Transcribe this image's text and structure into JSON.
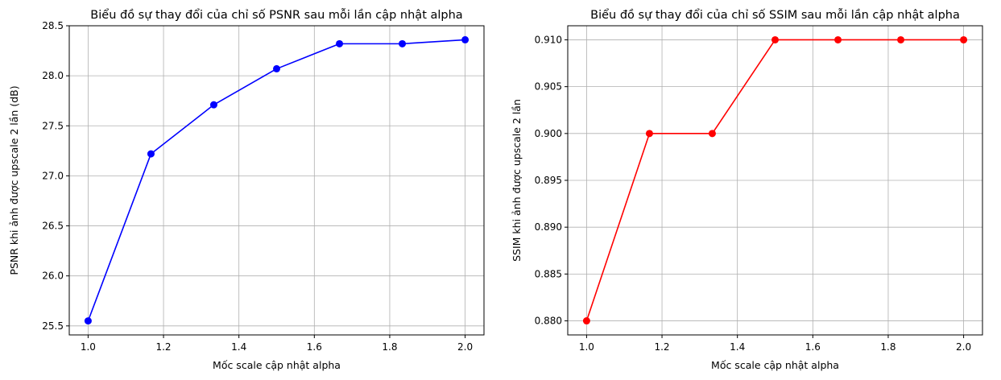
{
  "chart_data": [
    {
      "type": "line",
      "title": "Biểu đồ sự thay đổi của chỉ số PSNR sau mỗi lần cập nhật alpha",
      "xlabel": "Mốc scale cập nhật alpha",
      "ylabel": "PSNR khi ảnh được upscale 2 lần (dB)",
      "xlim": [
        0.95,
        2.05
      ],
      "ylim": [
        25.41,
        28.5
      ],
      "x_ticks": [
        1.0,
        1.2,
        1.4,
        1.6,
        1.8,
        2.0
      ],
      "x_tick_labels": [
        "1.0",
        "1.2",
        "1.4",
        "1.6",
        "1.8",
        "2.0"
      ],
      "y_ticks": [
        25.5,
        26.0,
        26.5,
        27.0,
        27.5,
        28.0,
        28.5
      ],
      "y_tick_labels": [
        "25.5",
        "26.0",
        "26.5",
        "27.0",
        "27.5",
        "28.0",
        "28.5"
      ],
      "grid": true,
      "color": "#0000ff",
      "marker": "circle",
      "series": [
        {
          "x": [
            1.0,
            1.1667,
            1.3333,
            1.5,
            1.6667,
            1.8333,
            2.0
          ],
          "y": [
            25.55,
            27.22,
            27.71,
            28.07,
            28.32,
            28.32,
            28.36
          ]
        }
      ]
    },
    {
      "type": "line",
      "title": "Biểu đồ sự thay đổi của chỉ số SSIM sau mỗi lần cập nhật alpha",
      "xlabel": "Mốc scale cập nhật alpha",
      "ylabel": "SSIM khi ảnh được upscale 2 lần",
      "xlim": [
        0.95,
        2.05
      ],
      "ylim": [
        0.8785,
        0.9115
      ],
      "x_ticks": [
        1.0,
        1.2,
        1.4,
        1.6,
        1.8,
        2.0
      ],
      "x_tick_labels": [
        "1.0",
        "1.2",
        "1.4",
        "1.6",
        "1.8",
        "2.0"
      ],
      "y_ticks": [
        0.88,
        0.885,
        0.89,
        0.895,
        0.9,
        0.905,
        0.91
      ],
      "y_tick_labels": [
        "0.880",
        "0.885",
        "0.890",
        "0.895",
        "0.900",
        "0.905",
        "0.910"
      ],
      "grid": true,
      "color": "#ff0000",
      "marker": "circle",
      "series": [
        {
          "x": [
            1.0,
            1.1667,
            1.3333,
            1.5,
            1.6667,
            1.8333,
            2.0
          ],
          "y": [
            0.88,
            0.9,
            0.9,
            0.91,
            0.91,
            0.91,
            0.91
          ]
        }
      ]
    }
  ]
}
